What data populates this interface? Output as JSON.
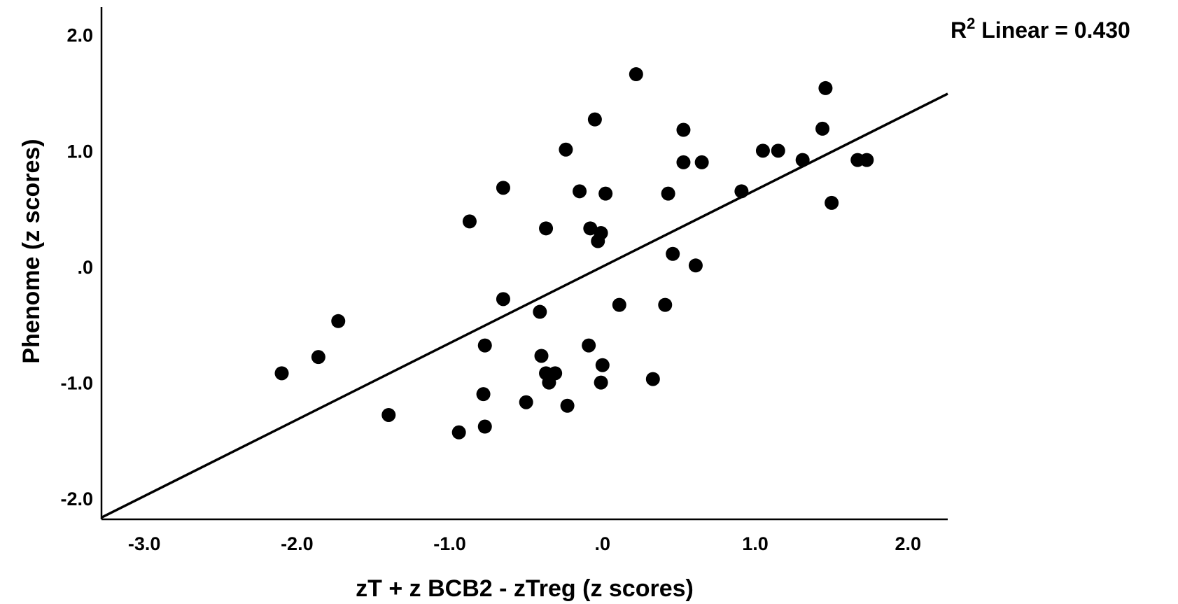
{
  "chart_data": {
    "type": "scatter",
    "xlabel": "zT + z BCB2 - zTreg (z scores)",
    "ylabel": "Phenome (z scores)",
    "xlim": [
      -3.28,
      2.26
    ],
    "ylim": [
      -2.18,
      2.24
    ],
    "x_ticks": [
      {
        "value": -3.0,
        "label": "-3.0"
      },
      {
        "value": -2.0,
        "label": "-2.0"
      },
      {
        "value": -1.0,
        "label": "-1.0"
      },
      {
        "value": 0.0,
        "label": ".0"
      },
      {
        "value": 1.0,
        "label": "1.0"
      },
      {
        "value": 2.0,
        "label": "2.0"
      }
    ],
    "y_ticks": [
      {
        "value": 2.0,
        "label": "2.0"
      },
      {
        "value": 1.0,
        "label": "1.0"
      },
      {
        "value": 0.0,
        "label": ".0"
      },
      {
        "value": -1.0,
        "label": "-1.0"
      },
      {
        "value": -2.0,
        "label": "-2.0"
      }
    ],
    "grid": false,
    "points": [
      {
        "x": 0.22,
        "y": 1.66
      },
      {
        "x": 1.46,
        "y": 1.54
      },
      {
        "x": -0.05,
        "y": 1.27
      },
      {
        "x": 0.53,
        "y": 1.18
      },
      {
        "x": 1.44,
        "y": 1.19
      },
      {
        "x": -0.24,
        "y": 1.01
      },
      {
        "x": 1.05,
        "y": 1.0
      },
      {
        "x": 1.15,
        "y": 1.0
      },
      {
        "x": 1.31,
        "y": 0.92
      },
      {
        "x": 1.67,
        "y": 0.92
      },
      {
        "x": 1.73,
        "y": 0.92
      },
      {
        "x": 0.53,
        "y": 0.9
      },
      {
        "x": 0.65,
        "y": 0.9
      },
      {
        "x": -0.65,
        "y": 0.68
      },
      {
        "x": -0.15,
        "y": 0.65
      },
      {
        "x": 0.02,
        "y": 0.63
      },
      {
        "x": 0.43,
        "y": 0.63
      },
      {
        "x": 0.91,
        "y": 0.65
      },
      {
        "x": 1.5,
        "y": 0.55
      },
      {
        "x": -0.87,
        "y": 0.39
      },
      {
        "x": -0.37,
        "y": 0.33
      },
      {
        "x": -0.08,
        "y": 0.33
      },
      {
        "x": -0.01,
        "y": 0.29
      },
      {
        "x": -0.03,
        "y": 0.22
      },
      {
        "x": 0.46,
        "y": 0.11
      },
      {
        "x": 0.61,
        "y": 0.01
      },
      {
        "x": -0.65,
        "y": -0.28
      },
      {
        "x": 0.11,
        "y": -0.33
      },
      {
        "x": 0.41,
        "y": -0.33
      },
      {
        "x": -0.41,
        "y": -0.39
      },
      {
        "x": -1.73,
        "y": -0.47
      },
      {
        "x": -0.77,
        "y": -0.68
      },
      {
        "x": -0.09,
        "y": -0.68
      },
      {
        "x": -0.4,
        "y": -0.77
      },
      {
        "x": -1.86,
        "y": -0.78
      },
      {
        "x": 0.0,
        "y": -0.85
      },
      {
        "x": -2.1,
        "y": -0.92
      },
      {
        "x": -0.37,
        "y": -0.92
      },
      {
        "x": -0.31,
        "y": -0.92
      },
      {
        "x": -0.35,
        "y": -1.0
      },
      {
        "x": -0.01,
        "y": -1.0
      },
      {
        "x": 0.33,
        "y": -0.97
      },
      {
        "x": -0.78,
        "y": -1.1
      },
      {
        "x": -0.5,
        "y": -1.17
      },
      {
        "x": -0.23,
        "y": -1.2
      },
      {
        "x": -1.4,
        "y": -1.28
      },
      {
        "x": -0.77,
        "y": -1.38
      },
      {
        "x": -0.94,
        "y": -1.43
      }
    ],
    "fit_line": {
      "type": "linear",
      "slope": 0.66,
      "intercept": 0.0,
      "x_range": [
        -3.28,
        2.26
      ],
      "annotation_prefix": "R",
      "annotation_superscript": "2",
      "annotation_suffix": " Linear = 0.430"
    },
    "colors": {
      "points": "#000000",
      "line": "#000000",
      "axes": "#000000"
    }
  }
}
